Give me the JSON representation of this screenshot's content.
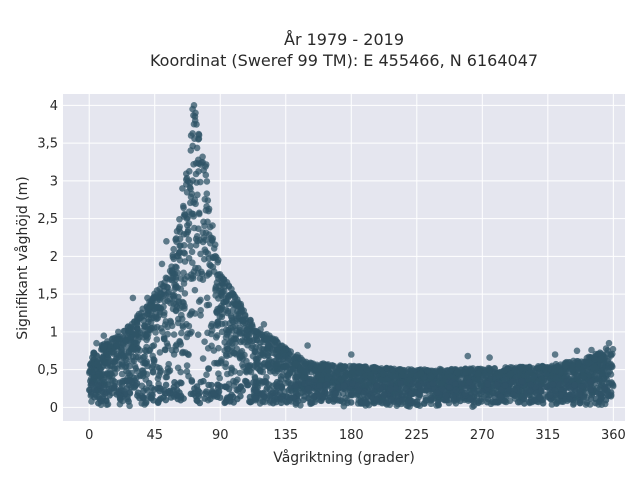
{
  "chart_data": {
    "type": "scatter",
    "title_line1": "År 1979 - 2019",
    "title_line2": "Koordinat (Sweref 99 TM): E 455466, N 6164047",
    "xlabel": "Vågriktning (grader)",
    "ylabel": "Signifikant våghöjd (m)",
    "xlim": [
      -18,
      368
    ],
    "ylim": [
      -0.18,
      4.15
    ],
    "x_ticks": [
      0,
      45,
      90,
      135,
      180,
      225,
      270,
      315,
      360
    ],
    "y_ticks": [
      0,
      0.5,
      1,
      1.5,
      2,
      2.5,
      3,
      3.5,
      4
    ],
    "y_tick_labels": [
      "0",
      "0,5",
      "1",
      "1,5",
      "2",
      "2,5",
      "3",
      "3,5",
      "4"
    ],
    "grid": true,
    "point_color": "#2f5467",
    "plot_background": "#e5e6ef",
    "envelope": {
      "x": [
        0,
        10,
        20,
        30,
        40,
        50,
        55,
        60,
        65,
        70,
        72,
        75,
        80,
        85,
        90,
        100,
        110,
        120,
        135,
        150,
        180,
        225,
        270,
        315,
        340,
        360
      ],
      "y_max": [
        0.7,
        0.85,
        0.95,
        1.15,
        1.4,
        1.65,
        1.85,
        2.3,
        2.9,
        3.5,
        4.0,
        3.7,
        3.3,
        2.4,
        1.8,
        1.5,
        1.2,
        1.0,
        0.8,
        0.6,
        0.55,
        0.5,
        0.52,
        0.55,
        0.65,
        0.8
      ]
    },
    "outliers": [
      {
        "x": 72,
        "y": 4.0
      },
      {
        "x": 71,
        "y": 3.95
      },
      {
        "x": 73,
        "y": 3.9
      },
      {
        "x": 70,
        "y": 3.6
      },
      {
        "x": 75,
        "y": 3.55
      },
      {
        "x": 64,
        "y": 2.9
      },
      {
        "x": 53,
        "y": 2.2
      },
      {
        "x": 50,
        "y": 1.9
      },
      {
        "x": 96,
        "y": 1.6
      },
      {
        "x": 100,
        "y": 1.45
      },
      {
        "x": 40,
        "y": 1.45
      },
      {
        "x": 30,
        "y": 1.45
      },
      {
        "x": 120,
        "y": 1.1
      },
      {
        "x": 128,
        "y": 0.9
      },
      {
        "x": 150,
        "y": 0.82
      },
      {
        "x": 180,
        "y": 0.7
      },
      {
        "x": 260,
        "y": 0.68
      },
      {
        "x": 275,
        "y": 0.66
      },
      {
        "x": 320,
        "y": 0.7
      },
      {
        "x": 335,
        "y": 0.75
      },
      {
        "x": 345,
        "y": 0.76
      },
      {
        "x": 355,
        "y": 0.78
      },
      {
        "x": 357,
        "y": 0.85
      },
      {
        "x": 5,
        "y": 0.85
      },
      {
        "x": 10,
        "y": 0.95
      },
      {
        "x": 20,
        "y": 1.0
      }
    ]
  }
}
